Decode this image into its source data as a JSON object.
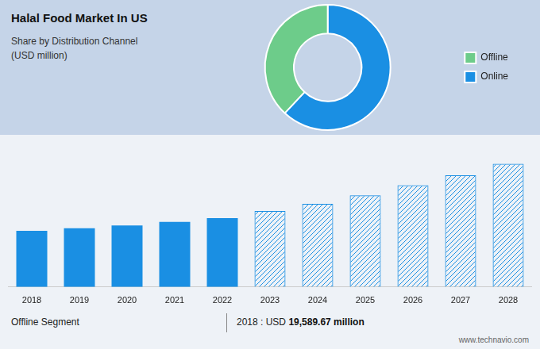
{
  "chart_data": [
    {
      "type": "doughnut",
      "title": "Halal Food Market In US",
      "subtitle": "Share by Distribution Channel\n(USD million)",
      "categories": [
        "Online",
        "Offline"
      ],
      "values": [
        62,
        38
      ],
      "colors": [
        "#1a8fe3",
        "#6dcc8a"
      ],
      "legend": "right"
    },
    {
      "type": "bar",
      "categories": [
        "2018",
        "2019",
        "2020",
        "2021",
        "2022",
        "2023",
        "2024",
        "2025",
        "2026",
        "2027",
        "2028"
      ],
      "series": [
        {
          "color": "#1a8fe3",
          "values": [
            19589.67,
            20500,
            21500,
            22700,
            24000,
            null,
            null,
            null,
            null,
            null,
            null
          ]
        },
        {
          "color": "#1a8fe3",
          "line_style": "hatched",
          "values": [
            null,
            null,
            null,
            null,
            null,
            26500,
            29000,
            32000,
            35500,
            39000,
            43000
          ]
        }
      ],
      "ylim": [
        0,
        52000
      ],
      "yticks": [],
      "tick_labels": "x",
      "grid": false,
      "annotations": [
        "Offline Segment",
        "2018 : USD ",
        "19,589.67 million",
        "www.technavio.com"
      ]
    }
  ]
}
